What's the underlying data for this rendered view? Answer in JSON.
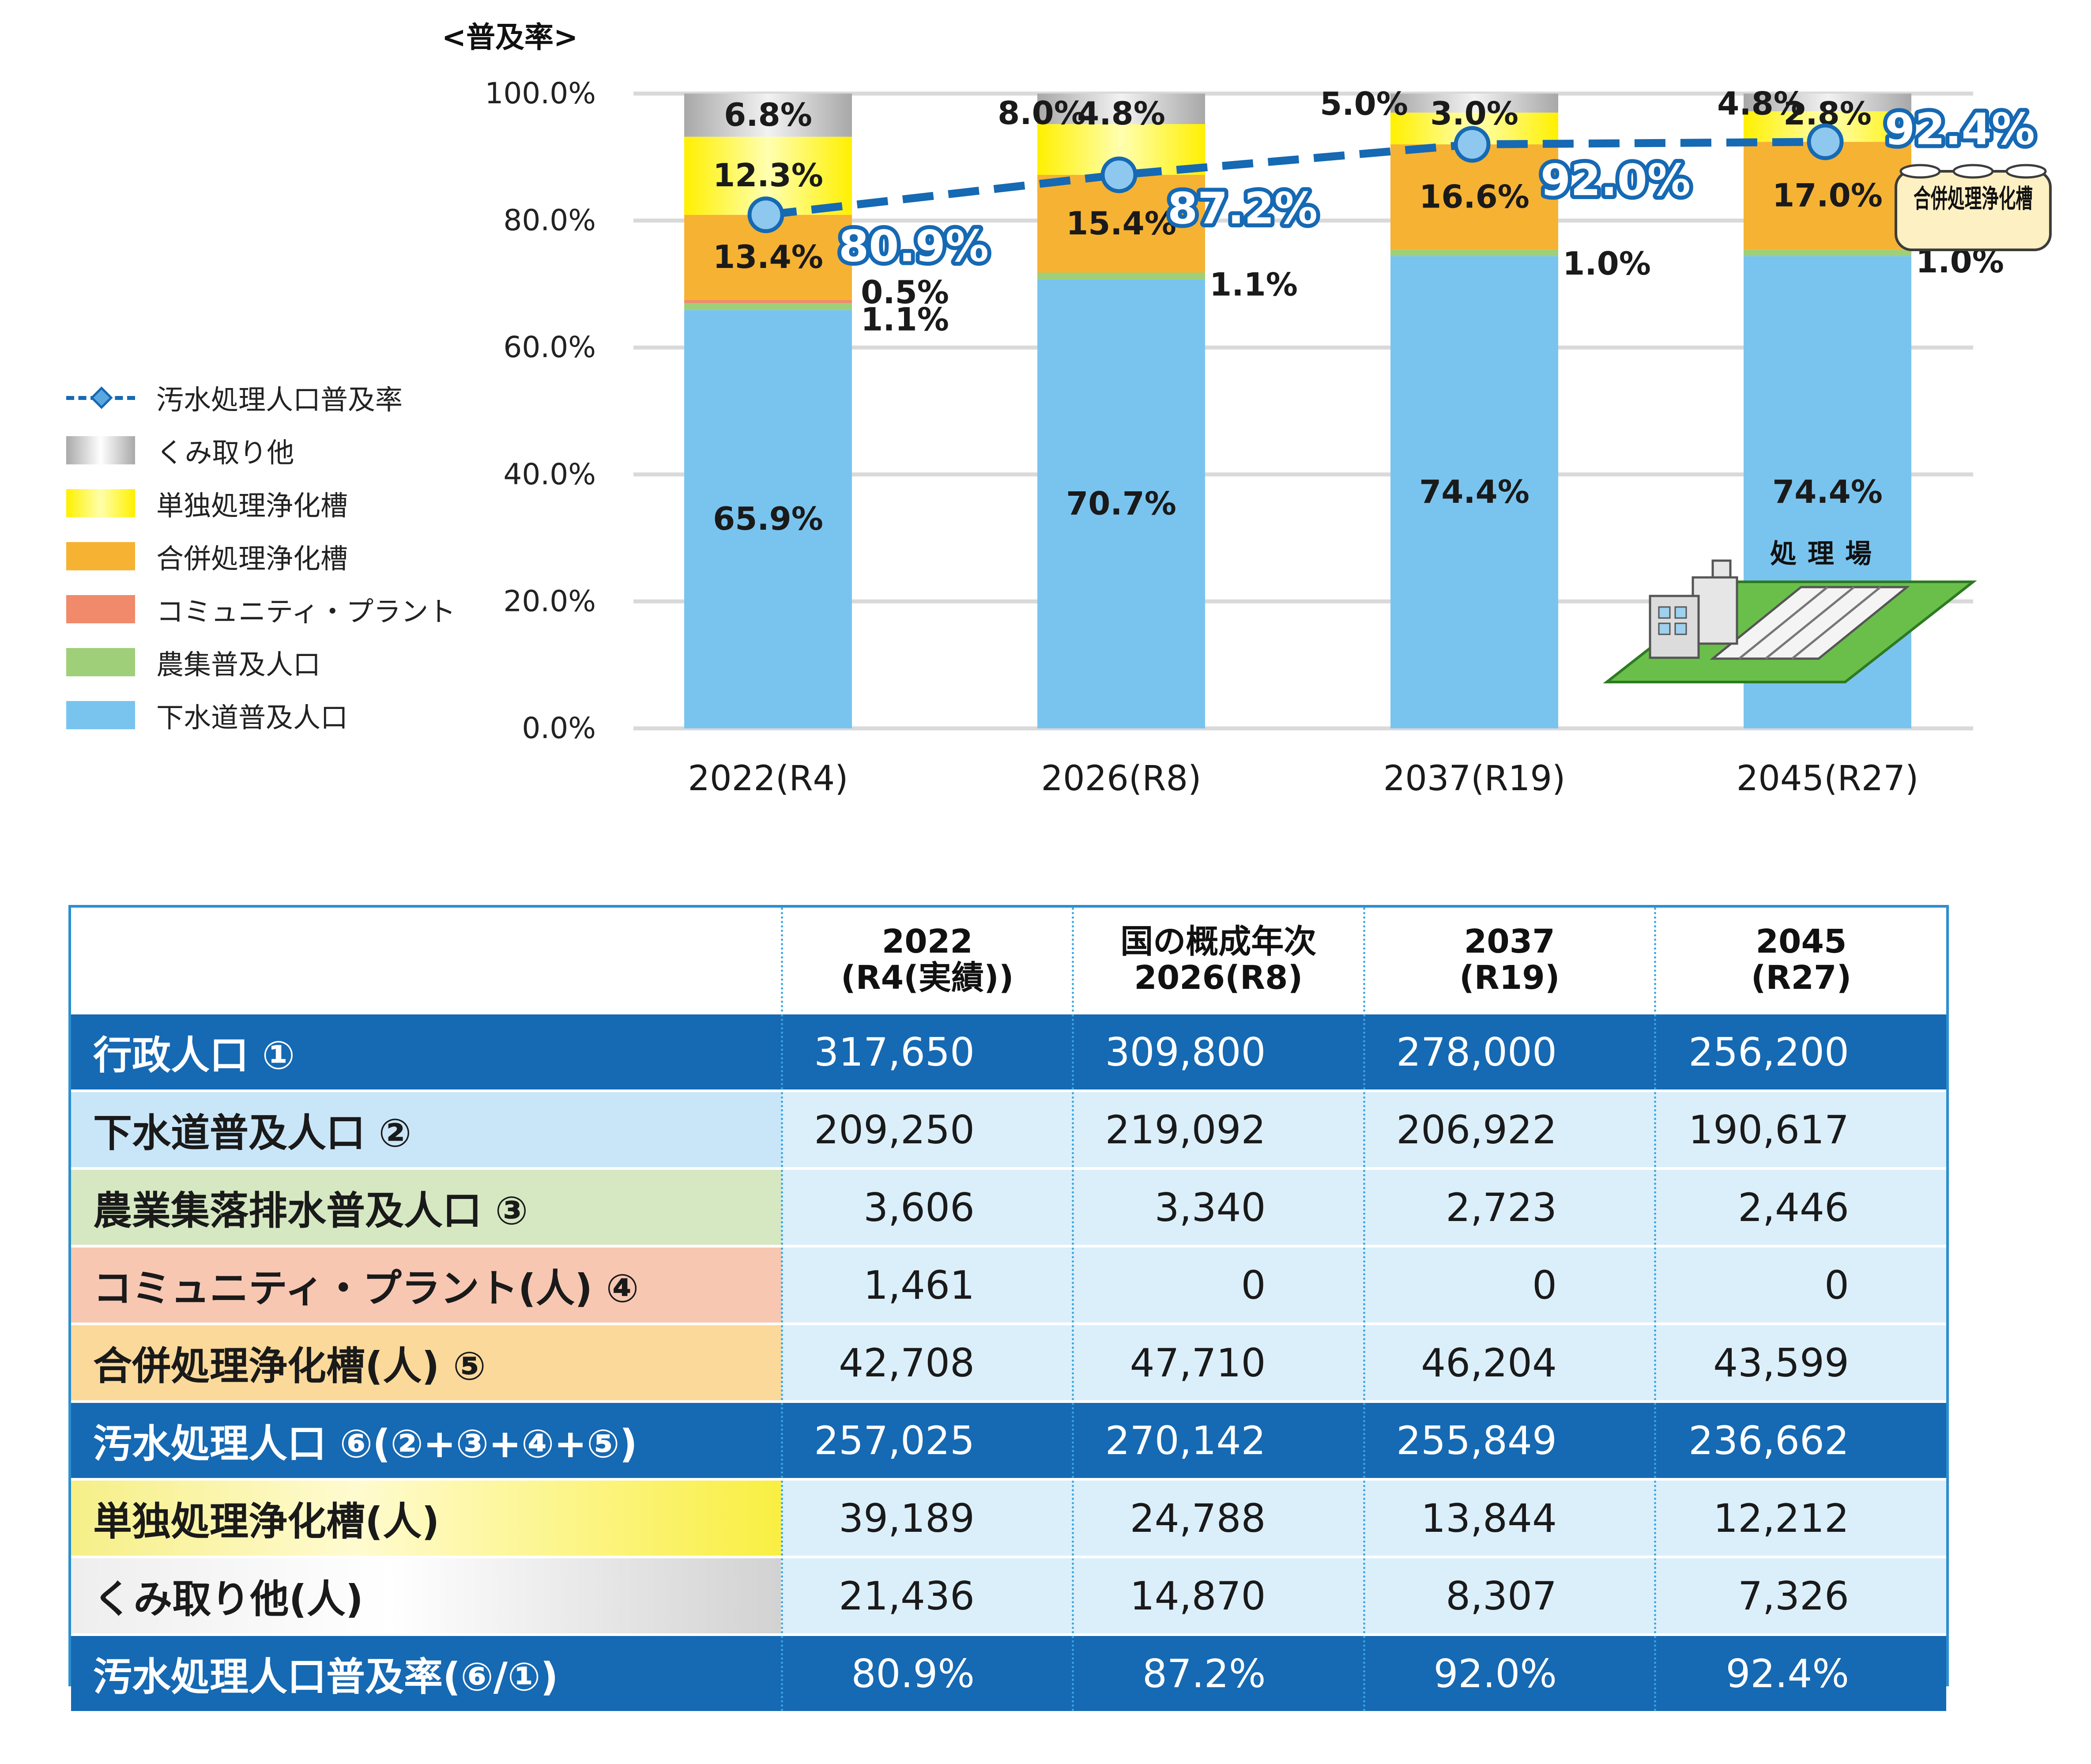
{
  "chart_data": {
    "type": "bar",
    "stacked": true,
    "y_axis_title": "<普及率>",
    "ylim": [
      0,
      100
    ],
    "yticks": [
      "0.0%",
      "20.0%",
      "40.0%",
      "60.0%",
      "80.0%",
      "100.0%"
    ],
    "categories": [
      "2022(R4)",
      "2026(R8)",
      "2037(R19)",
      "2045(R27)"
    ],
    "series": [
      {
        "name": "下水道普及人口",
        "color": "#79c4ef",
        "values": [
          65.9,
          70.7,
          74.4,
          74.4
        ],
        "labels": [
          "65.9%",
          "70.7%",
          "74.4%",
          "74.4%"
        ]
      },
      {
        "name": "農集普及人口",
        "color": "#9fcf78",
        "values": [
          1.1,
          1.1,
          1.0,
          1.0
        ],
        "labels": [
          "1.1%",
          "1.1%",
          "1.0%",
          "1.0%"
        ]
      },
      {
        "name": "コミュニティ・プラント",
        "color": "#f08a6a",
        "values": [
          0.5,
          0,
          0,
          0
        ],
        "labels": [
          "0.5%",
          "",
          "",
          ""
        ]
      },
      {
        "name": "合併処理浄化槽",
        "color": "#f6b233",
        "values": [
          13.4,
          15.4,
          16.6,
          17.0
        ],
        "labels": [
          "13.4%",
          "15.4%",
          "16.6%",
          "17.0%"
        ]
      },
      {
        "name": "単独処理浄化槽",
        "color": "#fff000",
        "values": [
          12.3,
          8.0,
          5.0,
          4.8
        ],
        "labels": [
          "12.3%",
          "8.0%",
          "5.0%",
          "4.8%"
        ]
      },
      {
        "name": "くみ取り他",
        "color": "#c4c4c4",
        "values": [
          6.8,
          4.8,
          3.0,
          2.8
        ],
        "labels": [
          "6.8%",
          "4.8%",
          "3.0%",
          "2.8%"
        ]
      }
    ],
    "line": {
      "name": "汚水処理人口普及率",
      "color": "#1669b3",
      "values": [
        80.9,
        87.2,
        92.0,
        92.4
      ],
      "labels": [
        "80.9%",
        "87.2%",
        "92.0%",
        "92.4%"
      ]
    },
    "annotations": {
      "septic_label": "合併処理浄化槽",
      "plant_label": "処理場"
    },
    "grid": true,
    "legend_position": "left"
  },
  "legend": [
    {
      "label": "汚水処理人口普及率",
      "kind": "line"
    },
    {
      "label": "くみ取り他",
      "gradient": [
        "#a9a9a9",
        "#ffffff",
        "#a9a9a9"
      ]
    },
    {
      "label": "単独処理浄化槽",
      "gradient": [
        "#fff000",
        "#ffffaa",
        "#fff000"
      ]
    },
    {
      "label": "合併処理浄化槽",
      "gradient": [
        "#f6b233",
        "#f6b233"
      ]
    },
    {
      "label": "コミュニティ・プラント",
      "gradient": [
        "#f08a6a",
        "#f08a6a"
      ]
    },
    {
      "label": "農集普及人口",
      "gradient": [
        "#9fcf78",
        "#9fcf78"
      ]
    },
    {
      "label": "下水道普及人口",
      "gradient": [
        "#79c4ef",
        "#79c4ef"
      ]
    }
  ],
  "table": {
    "headers": [
      "",
      "2022\n(R4(実績))",
      "国の概成年次\n2026(R8)",
      "2037\n(R19)",
      "2045\n(R27)"
    ],
    "rows": [
      {
        "label": "行政人口 ①",
        "style": "dark",
        "values": [
          "317,650",
          "309,800",
          "278,000",
          "256,200"
        ]
      },
      {
        "label": "下水道普及人口 ②",
        "style": "blue",
        "values": [
          "209,250",
          "219,092",
          "206,922",
          "190,617"
        ]
      },
      {
        "label": "農業集落排水普及人口 ③",
        "style": "green",
        "values": [
          "3,606",
          "3,340",
          "2,723",
          "2,446"
        ]
      },
      {
        "label": "コミュニティ・プラント(人) ④",
        "style": "salmon",
        "values": [
          "1,461",
          "0",
          "0",
          "0"
        ]
      },
      {
        "label": "合併処理浄化槽(人) ⑤",
        "style": "orange",
        "values": [
          "42,708",
          "47,710",
          "46,204",
          "43,599"
        ]
      },
      {
        "label": "汚水処理人口 ⑥(②+③+④+⑤)",
        "style": "dark",
        "values": [
          "257,025",
          "270,142",
          "255,849",
          "236,662"
        ]
      },
      {
        "label": "単独処理浄化槽(人)",
        "style": "yellow",
        "values": [
          "39,189",
          "24,788",
          "13,844",
          "12,212"
        ]
      },
      {
        "label": "くみ取り他(人)",
        "style": "gray",
        "values": [
          "21,436",
          "14,870",
          "8,307",
          "7,326"
        ]
      },
      {
        "label": "汚水処理人口普及率(⑥/①)",
        "style": "dark",
        "values": [
          "80.9%",
          "87.2%",
          "92.0%",
          "92.4%"
        ]
      }
    ]
  }
}
